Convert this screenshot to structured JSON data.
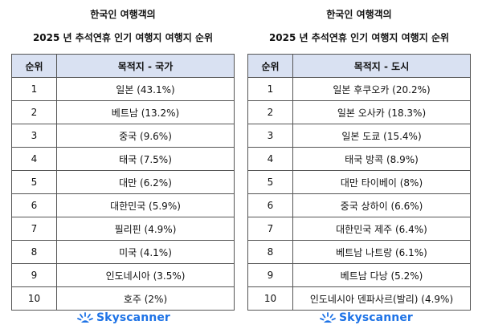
{
  "left": {
    "title_line1": "한국인 여행객의",
    "title_line2": "2025 년 추석연휴 인기 여행지 여행지 순위",
    "col_rank": "순위",
    "col_dest": "목적지 - 국가",
    "rows": [
      {
        "rank": "1",
        "dest": "일본 (43.1%)"
      },
      {
        "rank": "2",
        "dest": "베트남 (13.2%)"
      },
      {
        "rank": "3",
        "dest": "중국 (9.6%)"
      },
      {
        "rank": "4",
        "dest": "태국 (7.5%)"
      },
      {
        "rank": "5",
        "dest": "대만 (6.2%)"
      },
      {
        "rank": "6",
        "dest": "대한민국 (5.9%)"
      },
      {
        "rank": "7",
        "dest": "필리핀 (4.9%)"
      },
      {
        "rank": "8",
        "dest": "미국 (4.1%)"
      },
      {
        "rank": "9",
        "dest": "인도네시아 (3.5%)"
      },
      {
        "rank": "10",
        "dest": "호주 (2%)"
      }
    ],
    "logo_text": "Skyscanner"
  },
  "right": {
    "title_line1": "한국인 여행객의",
    "title_line2": "2025 년 추석연휴 인기 여행지 여행지 순위",
    "col_rank": "순위",
    "col_dest": "목적지 - 도시",
    "rows": [
      {
        "rank": "1",
        "dest": "일본 후쿠오카 (20.2%)"
      },
      {
        "rank": "2",
        "dest": "일본 오사카 (18.3%)"
      },
      {
        "rank": "3",
        "dest": "일본 도쿄 (15.4%)"
      },
      {
        "rank": "4",
        "dest": "태국 방콕 (8.9%)"
      },
      {
        "rank": "5",
        "dest": "대만 타이베이 (8%)"
      },
      {
        "rank": "6",
        "dest": "중국 상하이 (6.6%)"
      },
      {
        "rank": "7",
        "dest": "대한민국 제주 (6.4%)"
      },
      {
        "rank": "8",
        "dest": "베트남 나트랑 (6.1%)"
      },
      {
        "rank": "9",
        "dest": "베트남 다낭 (5.2%)"
      },
      {
        "rank": "10",
        "dest": "인도네시아 덴파사르(발리) (4.9%)"
      }
    ],
    "logo_text": "Skyscanner"
  },
  "colors": {
    "header_bg": "#d9e1f2",
    "brand": "#1e73e6"
  },
  "icons": {
    "logo": "skyscanner-sunrise-icon"
  }
}
